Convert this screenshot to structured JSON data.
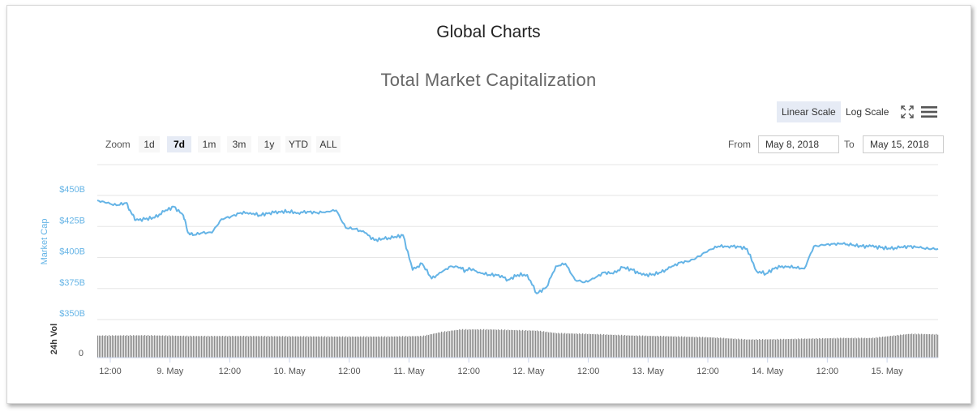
{
  "page_title": "Global Charts",
  "toolbar": {
    "linear_scale": "Linear Scale",
    "log_scale": "Log Scale",
    "zoom_label": "Zoom",
    "zoom_buttons": [
      "1d",
      "7d",
      "1m",
      "3m",
      "1y",
      "YTD",
      "ALL"
    ],
    "zoom_selected": "7d",
    "from_label": "From",
    "from_value": "May 8, 2018",
    "to_label": "To",
    "to_value": "May 15, 2018"
  },
  "icons": {
    "fullscreen": "fullscreen-icon",
    "menu": "menu-icon"
  },
  "colors": {
    "line": "#65b4e6",
    "volume": "#8c8c8c",
    "axis_label": "#65b4e6",
    "active_bg": "#e6ebf5"
  },
  "chart_data": {
    "type": "line",
    "title": "Total Market Capitalization",
    "ylabel": "Market Cap",
    "ylim": [
      350,
      450
    ],
    "y_ticks": [
      "$450B",
      "$425B",
      "$400B",
      "$375B",
      "$350B"
    ],
    "x_ticks": [
      "12:00",
      "9. May",
      "12:00",
      "10. May",
      "12:00",
      "11. May",
      "12:00",
      "12. May",
      "12:00",
      "13. May",
      "12:00",
      "14. May",
      "12:00",
      "15. May"
    ],
    "x_range": [
      "May 8, 2018 10:00",
      "May 15, 2018 18:00"
    ],
    "scale": "linear",
    "grid": true,
    "series": [
      {
        "values_unit": "$B",
        "x_hours_from_may8": [
          0,
          2,
          4,
          6,
          7,
          8,
          10,
          12,
          14,
          16,
          18,
          19,
          20,
          22,
          24,
          26,
          28,
          30,
          32,
          34,
          36,
          38,
          40,
          42,
          44,
          46,
          48,
          50,
          52,
          54,
          56,
          58,
          60,
          62,
          64,
          66,
          68,
          70,
          72,
          74,
          76,
          77,
          78,
          80,
          82,
          84,
          86,
          88,
          90,
          92,
          94,
          96,
          98,
          100,
          102,
          104,
          106,
          108,
          110,
          112,
          114,
          116,
          118,
          120,
          122,
          124,
          126,
          128,
          130,
          132,
          134,
          136,
          138,
          140,
          142,
          144,
          146,
          148,
          150,
          152,
          154,
          156,
          158,
          160,
          162,
          164,
          166,
          168,
          170,
          172,
          174,
          176
        ],
        "values": [
          446,
          444,
          442,
          444,
          437,
          430,
          431,
          432,
          437,
          441,
          434,
          420,
          418,
          420,
          420,
          431,
          433,
          436,
          436,
          434,
          436,
          437,
          437,
          436,
          437,
          436,
          437,
          438,
          424,
          423,
          420,
          414,
          415,
          416,
          418,
          390,
          395,
          383,
          388,
          393,
          392,
          389,
          391,
          388,
          386,
          386,
          382,
          386,
          386,
          371,
          376,
          393,
          395,
          382,
          380,
          383,
          388,
          387,
          392,
          390,
          386,
          386,
          388,
          392,
          396,
          397,
          401,
          406,
          409,
          409,
          409,
          407,
          389,
          387,
          392,
          393,
          392,
          391,
          409,
          410,
          411,
          411,
          410,
          409,
          409,
          408,
          407,
          408,
          409,
          408,
          407,
          407
        ]
      },
      {
        "name": "24h Vol",
        "x_hours_from_may8": [
          0,
          10,
          20,
          30,
          40,
          50,
          60,
          68,
          72,
          76,
          82,
          88,
          92,
          96,
          104,
          112,
          120,
          128,
          136,
          142,
          150,
          156,
          162,
          170,
          176
        ],
        "values_relative": [
          0.9,
          0.91,
          0.88,
          0.88,
          0.87,
          0.86,
          0.86,
          0.88,
          1.05,
          1.15,
          1.15,
          1.12,
          1.1,
          1.0,
          0.96,
          0.9,
          0.87,
          0.83,
          0.74,
          0.75,
          0.78,
          0.8,
          0.8,
          0.97,
          0.95
        ]
      }
    ],
    "volume_label": "24h Vol",
    "volume_zero_label": "0"
  }
}
